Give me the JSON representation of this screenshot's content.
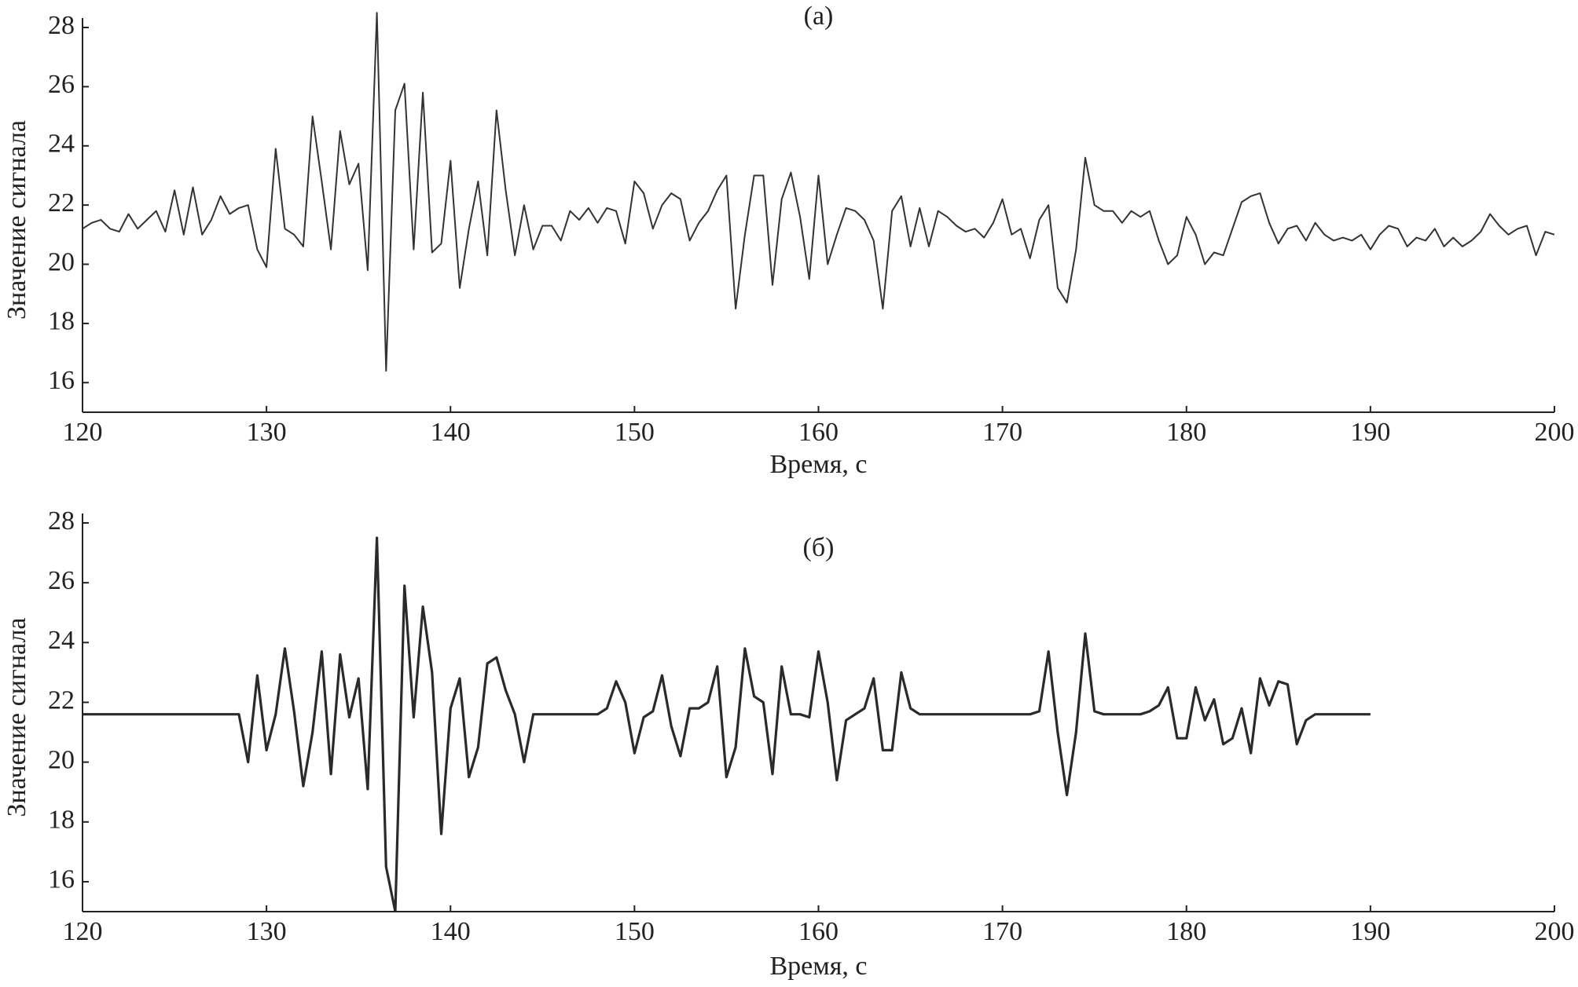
{
  "chart_data": [
    {
      "type": "line",
      "title": "(а)",
      "xlabel": "Время, с",
      "ylabel": "Значение сигнала",
      "color": "#333333",
      "xlim": [
        120,
        200
      ],
      "ylim": [
        15,
        28
      ],
      "xticks": [
        120,
        130,
        140,
        150,
        160,
        170,
        180,
        190,
        200
      ],
      "yticks": [
        16,
        18,
        20,
        22,
        24,
        26,
        28
      ],
      "x": [
        120,
        120.5,
        121,
        121.5,
        122,
        122.5,
        123,
        123.5,
        124,
        124.5,
        125,
        125.5,
        126,
        126.5,
        127,
        127.5,
        128,
        128.5,
        129,
        129.5,
        130,
        130.5,
        131,
        131.5,
        132,
        132.5,
        133,
        133.5,
        134,
        134.5,
        135,
        135.5,
        136,
        136.5,
        137,
        137.5,
        138,
        138.5,
        139,
        139.5,
        140,
        140.5,
        141,
        141.5,
        142,
        142.5,
        143,
        143.5,
        144,
        144.5,
        145,
        145.5,
        146,
        146.5,
        147,
        147.5,
        148,
        148.5,
        149,
        149.5,
        150,
        150.5,
        151,
        151.5,
        152,
        152.5,
        153,
        153.5,
        154,
        154.5,
        155,
        155.5,
        156,
        156.5,
        157,
        157.5,
        158,
        158.5,
        159,
        159.5,
        160,
        160.5,
        161,
        161.5,
        162,
        162.5,
        163,
        163.5,
        164,
        164.5,
        165,
        165.5,
        166,
        166.5,
        167,
        167.5,
        168,
        168.5,
        169,
        169.5,
        170,
        170.5,
        171,
        171.5,
        172,
        172.5,
        173,
        173.5,
        174,
        174.5,
        175,
        175.5,
        176,
        176.5,
        177,
        177.5,
        178,
        178.5,
        179,
        179.5,
        180,
        180.5,
        181,
        181.5,
        182,
        182.5,
        183,
        183.5,
        184,
        184.5,
        185,
        185.5,
        186,
        186.5,
        187,
        187.5,
        188,
        188.5,
        189,
        189.5,
        190,
        190.5,
        191,
        191.5,
        192,
        192.5,
        193,
        193.5,
        194,
        194.5,
        195,
        195.5,
        196,
        196.5,
        197,
        197.5,
        198,
        198.5,
        199,
        199.5,
        200
      ],
      "values": [
        21.2,
        21.4,
        21.5,
        21.2,
        21.1,
        21.7,
        21.2,
        21.5,
        21.8,
        21.1,
        22.5,
        21.0,
        22.6,
        21.0,
        21.5,
        22.3,
        21.7,
        21.9,
        22.0,
        20.5,
        19.9,
        23.9,
        21.2,
        21.0,
        20.6,
        25.0,
        22.8,
        20.5,
        24.5,
        22.7,
        23.4,
        19.8,
        28.5,
        16.4,
        25.2,
        26.1,
        20.5,
        25.8,
        20.4,
        20.7,
        23.5,
        19.2,
        21.2,
        22.8,
        20.3,
        25.2,
        22.5,
        20.3,
        22.0,
        20.5,
        21.3,
        21.3,
        20.8,
        21.8,
        21.5,
        21.9,
        21.4,
        21.9,
        21.8,
        20.7,
        22.8,
        22.4,
        21.2,
        22.0,
        22.4,
        22.2,
        20.8,
        21.4,
        21.8,
        22.5,
        23.0,
        18.5,
        21.0,
        23.0,
        23.0,
        19.3,
        22.2,
        23.1,
        21.6,
        19.5,
        23.0,
        20.0,
        21.0,
        21.9,
        21.8,
        21.5,
        20.8,
        18.5,
        21.8,
        22.3,
        20.6,
        21.9,
        20.6,
        21.8,
        21.6,
        21.3,
        21.1,
        21.2,
        20.9,
        21.4,
        22.2,
        21.0,
        21.2,
        20.2,
        21.5,
        22.0,
        19.2,
        18.7,
        20.5,
        23.6,
        22.0,
        21.8,
        21.8,
        21.4,
        21.8,
        21.6,
        21.8,
        20.8,
        20.0,
        20.3,
        21.6,
        21.0,
        20.0,
        20.4,
        20.3,
        21.2,
        22.1,
        22.3,
        22.4,
        21.4,
        20.7,
        21.2,
        21.3,
        20.8,
        21.4,
        21.0,
        20.8,
        20.9,
        20.8,
        21.0,
        20.5,
        21.0,
        21.3,
        21.2,
        20.6,
        20.9,
        20.8,
        21.2,
        20.6,
        20.9,
        20.6,
        20.8,
        21.1,
        21.7,
        21.3,
        21.0,
        21.2,
        21.3,
        20.3,
        21.1,
        21.0
      ]
    },
    {
      "type": "line",
      "title": "(б)",
      "xlabel": "Время, с",
      "ylabel": "Значение сигнала",
      "color": "#2a2a2a",
      "xlim": [
        120,
        200
      ],
      "ylim": [
        15,
        28
      ],
      "xticks": [
        120,
        130,
        140,
        150,
        160,
        170,
        180,
        190,
        200
      ],
      "yticks": [
        16,
        18,
        20,
        22,
        24,
        26,
        28
      ],
      "x": [
        120,
        120.5,
        121,
        121.5,
        122,
        122.5,
        123,
        123.5,
        124,
        124.5,
        125,
        125.5,
        126,
        126.5,
        127,
        127.5,
        128,
        128.5,
        129,
        129.5,
        130,
        130.5,
        131,
        131.5,
        132,
        132.5,
        133,
        133.5,
        134,
        134.5,
        135,
        135.5,
        136,
        136.5,
        137,
        137.5,
        138,
        138.5,
        139,
        139.5,
        140,
        140.5,
        141,
        141.5,
        142,
        142.5,
        143,
        143.5,
        144,
        144.5,
        145,
        145.5,
        146,
        146.5,
        147,
        147.5,
        148,
        148.5,
        149,
        149.5,
        150,
        150.5,
        151,
        151.5,
        152,
        152.5,
        153,
        153.5,
        154,
        154.5,
        155,
        155.5,
        156,
        156.5,
        157,
        157.5,
        158,
        158.5,
        159,
        159.5,
        160,
        160.5,
        161,
        161.5,
        162,
        162.5,
        163,
        163.5,
        164,
        164.5,
        165,
        165.5,
        166,
        166.5,
        167,
        167.5,
        168,
        168.5,
        169,
        169.5,
        170,
        170.5,
        171,
        171.5,
        172,
        172.5,
        173,
        173.5,
        174,
        174.5,
        175,
        175.5,
        176,
        176.5,
        177,
        177.5,
        178,
        178.5,
        179,
        179.5,
        180,
        180.5,
        181,
        181.5,
        182,
        182.5,
        183,
        183.5,
        184,
        184.5,
        185,
        185.5,
        186,
        186.5,
        187,
        187.5,
        188,
        188.5,
        189,
        189.5,
        190
      ],
      "values": [
        21.6,
        21.6,
        21.6,
        21.6,
        21.6,
        21.6,
        21.6,
        21.6,
        21.6,
        21.6,
        21.6,
        21.6,
        21.6,
        21.6,
        21.6,
        21.6,
        21.6,
        21.6,
        20.0,
        22.9,
        20.4,
        21.6,
        23.8,
        21.7,
        19.2,
        21.0,
        23.7,
        19.6,
        23.6,
        21.5,
        22.8,
        19.1,
        27.5,
        16.5,
        15.0,
        25.9,
        21.5,
        25.2,
        23.0,
        17.6,
        21.8,
        22.8,
        19.5,
        20.5,
        23.3,
        23.5,
        22.4,
        21.6,
        20.0,
        21.6,
        21.6,
        21.6,
        21.6,
        21.6,
        21.6,
        21.6,
        21.6,
        21.8,
        22.7,
        22.0,
        20.3,
        21.5,
        21.7,
        22.9,
        21.2,
        20.2,
        21.8,
        21.8,
        22.0,
        23.2,
        19.5,
        20.5,
        23.8,
        22.2,
        22.0,
        19.6,
        23.2,
        21.6,
        21.6,
        21.5,
        23.7,
        22.0,
        19.4,
        21.4,
        21.6,
        21.8,
        22.8,
        20.4,
        20.4,
        23.0,
        21.8,
        21.6,
        21.6,
        21.6,
        21.6,
        21.6,
        21.6,
        21.6,
        21.6,
        21.6,
        21.6,
        21.6,
        21.6,
        21.6,
        21.7,
        23.7,
        21.0,
        18.9,
        21.0,
        24.3,
        21.7,
        21.6,
        21.6,
        21.6,
        21.6,
        21.6,
        21.7,
        21.9,
        22.5,
        20.8,
        20.8,
        22.5,
        21.4,
        22.1,
        20.6,
        20.8,
        21.8,
        20.3,
        22.8,
        21.9,
        22.7,
        22.6,
        20.6,
        21.4,
        21.6,
        21.6,
        21.6,
        21.6,
        21.6,
        21.6,
        21.6
      ]
    }
  ]
}
